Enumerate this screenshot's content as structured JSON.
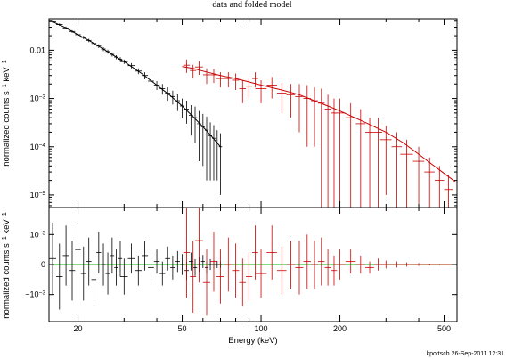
{
  "chart_data": {
    "title": "data and folded model",
    "footer": "kpottsch 26-Sep-2011 12:31",
    "xlabel": "Energy (keV)",
    "xscale": "log",
    "xlim": [
      15.5,
      560
    ],
    "x_ticks": [
      {
        "value": 20,
        "label": "20"
      },
      {
        "value": 50,
        "label": "50"
      },
      {
        "value": 100,
        "label": "100"
      },
      {
        "value": 200,
        "label": "200"
      },
      {
        "value": 500,
        "label": "500"
      }
    ],
    "panels": [
      {
        "type": "line",
        "ylabel": "normalized counts s^-1 keV^-1",
        "ylabel_main": "normalized counts s",
        "ylabel_sup1": "−1",
        "ylabel_mid": " keV",
        "ylabel_sup2": "−1",
        "yscale": "log",
        "ylim": [
          5.5e-06,
          0.045
        ],
        "y_ticks": [
          {
            "value": 0.01,
            "label": "0.01"
          },
          {
            "value": 0.001,
            "label": "10",
            "sup": "−3"
          },
          {
            "value": 0.0001,
            "label": "10",
            "sup": "−4"
          },
          {
            "value": 1e-05,
            "label": "10",
            "sup": "−5"
          }
        ],
        "series": [
          {
            "color": "#000000",
            "model": [
              [
                16,
                0.039
              ],
              [
                18,
                0.029
              ],
              [
                20,
                0.021
              ],
              [
                22,
                0.016
              ],
              [
                25,
                0.0106
              ],
              [
                28,
                0.0072
              ],
              [
                30,
                0.0058
              ],
              [
                35,
                0.0033
              ],
              [
                40,
                0.0019
              ],
              [
                45,
                0.00115
              ],
              [
                50,
                0.0007
              ],
              [
                55,
                0.00042
              ],
              [
                60,
                0.00026
              ],
              [
                65,
                0.00016
              ],
              [
                70,
                0.0001
              ]
            ],
            "data": [
              [
                16,
                0.039,
                0.002
              ],
              [
                17,
                0.034,
                0.002
              ],
              [
                18,
                0.029,
                0.0018
              ],
              [
                19,
                0.0245,
                0.0016
              ],
              [
                20,
                0.021,
                0.0015
              ],
              [
                21,
                0.0185,
                0.0014
              ],
              [
                22,
                0.016,
                0.0013
              ],
              [
                23,
                0.0138,
                0.0012
              ],
              [
                24,
                0.0122,
                0.0011
              ],
              [
                25,
                0.0106,
                0.001
              ],
              [
                26,
                0.0094,
                0.0009
              ],
              [
                27,
                0.0082,
                0.0008
              ],
              [
                28,
                0.0072,
                0.0007
              ],
              [
                29,
                0.0065,
                0.0007
              ],
              [
                30,
                0.0058,
                0.0006
              ],
              [
                32,
                0.0048,
                0.0006
              ],
              [
                34,
                0.0037,
                0.0005
              ],
              [
                36,
                0.003,
                0.0005
              ],
              [
                38,
                0.0023,
                0.0005
              ],
              [
                40,
                0.0019,
                0.0004
              ],
              [
                42,
                0.0016,
                0.0004
              ],
              [
                44,
                0.0013,
                0.0004
              ],
              [
                46,
                0.0011,
                0.00035
              ],
              [
                48,
                0.0009,
                0.00035
              ],
              [
                50,
                0.0007,
                0.0003
              ],
              [
                52,
                0.0006,
                0.0003
              ],
              [
                54,
                0.00045,
                0.00028
              ],
              [
                56,
                0.0004,
                0.00028
              ],
              [
                58,
                0.0003,
                0.00025
              ],
              [
                60,
                0.00026,
                0.00022
              ],
              [
                62,
                0.00022,
                0.0002
              ],
              [
                64,
                0.00017,
                0.00015
              ],
              [
                66,
                0.00015,
                0.00013
              ],
              [
                68,
                0.00012,
                0.0001
              ],
              [
                70,
                0.0001,
                9e-05
              ]
            ]
          },
          {
            "color": "#cc0000",
            "model": [
              [
                50,
                0.0046
              ],
              [
                55,
                0.0042
              ],
              [
                60,
                0.0037
              ],
              [
                70,
                0.003
              ],
              [
                80,
                0.0026
              ],
              [
                90,
                0.0022
              ],
              [
                100,
                0.0019
              ],
              [
                120,
                0.0015
              ],
              [
                140,
                0.0012
              ],
              [
                160,
                0.0009
              ],
              [
                180,
                0.0007
              ],
              [
                200,
                0.00055
              ],
              [
                250,
                0.00032
              ],
              [
                300,
                0.0002
              ],
              [
                350,
                0.00012
              ],
              [
                400,
                7e-05
              ],
              [
                450,
                4.3e-05
              ],
              [
                500,
                2.8e-05
              ],
              [
                550,
                1.9e-05
              ]
            ],
            "data": [
              [
                52,
                0.0049,
                0.0015
              ],
              [
                55,
                0.0038,
                0.0012
              ],
              [
                58,
                0.0045,
                0.0014
              ],
              [
                62,
                0.0031,
                0.0011
              ],
              [
                66,
                0.0031,
                0.001
              ],
              [
                70,
                0.0026,
                0.0009
              ],
              [
                75,
                0.0026,
                0.0009
              ],
              [
                80,
                0.0024,
                0.0009
              ],
              [
                85,
                0.0016,
                0.0008
              ],
              [
                90,
                0.0018,
                0.0008
              ],
              [
                95,
                0.0026,
                0.0009
              ],
              [
                100,
                0.0016,
                0.0008
              ],
              [
                110,
                0.0019,
                0.0009
              ],
              [
                120,
                0.0013,
                0.0008
              ],
              [
                130,
                0.0012,
                0.0008
              ],
              [
                140,
                0.0011,
                0.0009
              ],
              [
                150,
                0.001,
                0.0009
              ],
              [
                160,
                0.0009,
                0.0008
              ],
              [
                170,
                0.0008,
                0.0008
              ],
              [
                180,
                0.0006,
                0.0006
              ],
              [
                190,
                0.0005,
                0.0005
              ],
              [
                200,
                0.0005,
                0.0005
              ],
              [
                220,
                0.0004,
                0.0004
              ],
              [
                240,
                0.0003,
                0.0003
              ],
              [
                260,
                0.0002,
                0.0002
              ],
              [
                280,
                0.0002,
                0.0002
              ],
              [
                300,
                0.00014,
                0.00013
              ],
              [
                330,
                0.0001,
                0.0001
              ],
              [
                360,
                7e-05,
                7e-05
              ],
              [
                400,
                5e-05,
                5e-05
              ],
              [
                440,
                3e-05,
                3e-05
              ],
              [
                480,
                2e-05,
                2e-05
              ],
              [
                520,
                1.3e-05,
                1.3e-05
              ]
            ]
          }
        ]
      },
      {
        "type": "scatter",
        "ylabel": "normalized counts s^-1 keV^-1",
        "ylabel_main": "normalized counts s",
        "ylabel_sup1": "−1",
        "ylabel_mid": " keV",
        "ylabel_sup2": "−1",
        "ylim": [
          -0.0019,
          0.0019
        ],
        "y_ticks": [
          {
            "value": 0.001,
            "label": "10",
            "sup": "−3"
          },
          {
            "value": 0,
            "label": "0"
          },
          {
            "value": -0.001,
            "label": "−10",
            "sup": "−3"
          }
        ],
        "zero_line_color": "#00bb00",
        "series": [
          {
            "color": "#000000",
            "data": [
              [
                16,
                0.0002,
                0.0012
              ],
              [
                17,
                -0.0004,
                0.0011
              ],
              [
                18,
                0.0003,
                0.001
              ],
              [
                19,
                -0.0002,
                0.001
              ],
              [
                20,
                0.0005,
                0.0009
              ],
              [
                21,
                -0.0003,
                0.0009
              ],
              [
                22,
                0.0001,
                0.0008
              ],
              [
                23,
                -0.0005,
                0.0008
              ],
              [
                24,
                0.0004,
                0.0007
              ],
              [
                25,
                0.0,
                0.0007
              ],
              [
                26,
                -0.0003,
                0.0007
              ],
              [
                27,
                0.0003,
                0.0006
              ],
              [
                28,
                -0.0001,
                0.0006
              ],
              [
                29,
                0.0002,
                0.0006
              ],
              [
                30,
                -0.0004,
                0.0006
              ],
              [
                32,
                0.0002,
                0.0005
              ],
              [
                34,
                -0.0002,
                0.0005
              ],
              [
                36,
                0.0003,
                0.0005
              ],
              [
                38,
                -0.0001,
                0.0005
              ],
              [
                40,
                0.0001,
                0.0004
              ],
              [
                42,
                -0.0003,
                0.0004
              ],
              [
                44,
                0.0002,
                0.0004
              ],
              [
                46,
                -0.0001,
                0.0004
              ],
              [
                48,
                0.0001,
                0.00035
              ],
              [
                50,
                0.0,
                0.00035
              ],
              [
                52,
                -0.0002,
                0.0003
              ],
              [
                54,
                0.0001,
                0.0003
              ],
              [
                56,
                -0.0001,
                0.00028
              ],
              [
                58,
                0.0,
                0.00025
              ],
              [
                60,
                0.0001,
                0.00022
              ],
              [
                62,
                -0.0001,
                0.0002
              ],
              [
                64,
                0.0,
                0.00018
              ],
              [
                66,
                0.0,
                0.00015
              ],
              [
                68,
                0.0,
                0.00012
              ],
              [
                70,
                0.0,
                0.0001
              ]
            ]
          },
          {
            "color": "#cc0000",
            "data": [
              [
                52,
                0.0004,
                0.0015
              ],
              [
                55,
                -0.0004,
                0.0012
              ],
              [
                58,
                0.0008,
                0.0014
              ],
              [
                62,
                -0.0006,
                0.0011
              ],
              [
                66,
                0.0001,
                0.001
              ],
              [
                70,
                -0.0004,
                0.0009
              ],
              [
                75,
                0.0,
                0.0009
              ],
              [
                80,
                -0.0002,
                0.0009
              ],
              [
                85,
                -0.0006,
                0.0008
              ],
              [
                90,
                -0.0004,
                0.0008
              ],
              [
                95,
                0.0004,
                0.0009
              ],
              [
                100,
                -0.0003,
                0.0008
              ],
              [
                110,
                0.0004,
                0.0009
              ],
              [
                120,
                -0.0002,
                0.0008
              ],
              [
                130,
                0.0,
                0.0008
              ],
              [
                140,
                -0.0001,
                0.0009
              ],
              [
                150,
                0.0001,
                0.0009
              ],
              [
                160,
                0.0,
                0.0008
              ],
              [
                170,
                0.0001,
                0.0008
              ],
              [
                180,
                -0.0001,
                0.0006
              ],
              [
                190,
                -0.0002,
                0.0005
              ],
              [
                200,
                0.0,
                0.0005
              ],
              [
                220,
                0.0001,
                0.0004
              ],
              [
                240,
                0.0,
                0.0003
              ],
              [
                260,
                -0.0001,
                0.0002
              ],
              [
                280,
                0.0,
                0.0002
              ],
              [
                300,
                0.0,
                0.00013
              ],
              [
                330,
                0.0,
                0.0001
              ],
              [
                360,
                0.0,
                7e-05
              ],
              [
                400,
                0.0,
                5e-05
              ],
              [
                440,
                0.0,
                3e-05
              ],
              [
                480,
                0.0,
                2e-05
              ],
              [
                520,
                0.0,
                1.3e-05
              ]
            ]
          }
        ]
      }
    ]
  }
}
